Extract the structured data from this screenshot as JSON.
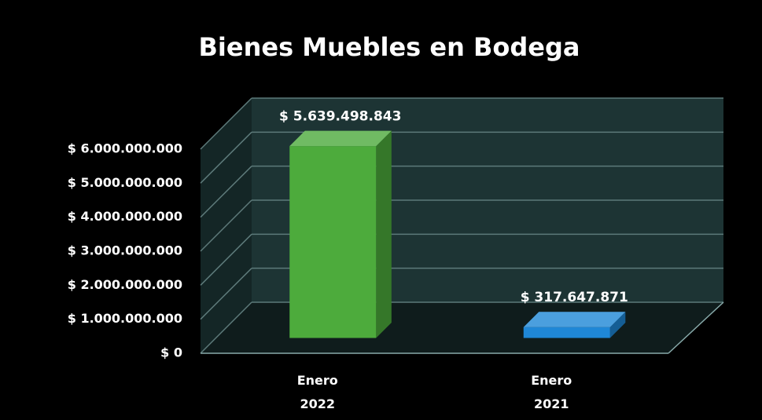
{
  "chart_data": {
    "type": "bar3d",
    "title": "Bienes Muebles en Bodega",
    "categories": [
      "Enero 2022",
      "Enero 2021"
    ],
    "values": [
      5639498843,
      317647871
    ],
    "value_labels": [
      "$ 5.639.498.843",
      "$ 317.647.871"
    ],
    "colors": [
      "#4dab3c",
      "#1f87d6"
    ],
    "ylim": [
      0,
      6000000000
    ],
    "yticks": [
      {
        "value": 0,
        "label": "$ 0"
      },
      {
        "value": 1000000000,
        "label": "$ 1.000.000.000"
      },
      {
        "value": 2000000000,
        "label": "$ 2.000.000.000"
      },
      {
        "value": 3000000000,
        "label": "$ 3.000.000.000"
      },
      {
        "value": 4000000000,
        "label": "$ 4.000.000.000"
      },
      {
        "value": 5000000000,
        "label": "$ 5.000.000.000"
      },
      {
        "value": 6000000000,
        "label": "$ 6.000.000.000"
      }
    ],
    "grid": true
  }
}
